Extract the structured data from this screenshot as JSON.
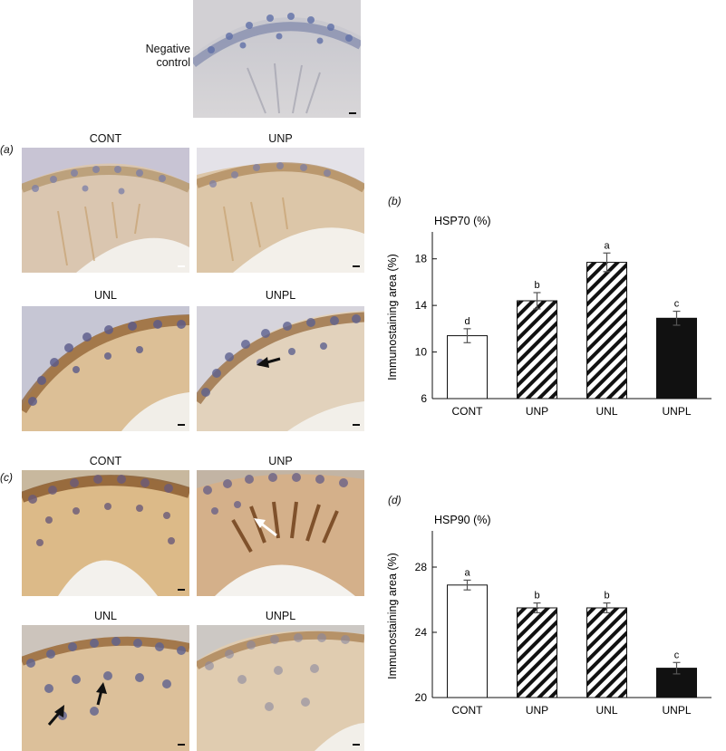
{
  "negative_control": {
    "label_line1": "Negative",
    "label_line2": "control"
  },
  "panel_a": {
    "tag_open": "(",
    "tag_letter": "a",
    "tag_close": ")",
    "images": [
      {
        "label": "CONT"
      },
      {
        "label": "UNP"
      },
      {
        "label": "UNL"
      },
      {
        "label": "UNPL"
      }
    ]
  },
  "panel_c": {
    "tag_open": "(",
    "tag_letter": "c",
    "tag_close": ")",
    "images": [
      {
        "label": "CONT"
      },
      {
        "label": "UNP"
      },
      {
        "label": "UNL"
      },
      {
        "label": "UNPL"
      }
    ]
  },
  "chart_data": [
    {
      "panel": "(b)",
      "type": "bar",
      "title": "HSP70 (%)",
      "ylabel": "Immunostaining area (%)",
      "xlabel": "",
      "categories": [
        "CONT",
        "UNP",
        "UNL",
        "UNPL"
      ],
      "values": [
        11.4,
        14.4,
        17.7,
        12.9
      ],
      "errors": [
        0.6,
        0.7,
        0.8,
        0.6
      ],
      "letters": [
        "d",
        "b",
        "a",
        "c"
      ],
      "fills": [
        "white",
        "hatched",
        "hatched",
        "black"
      ],
      "ylim": [
        6,
        20
      ],
      "yticks": [
        6,
        10,
        14,
        18
      ],
      "grid": false
    },
    {
      "panel": "(d)",
      "type": "bar",
      "title": "HSP90 (%)",
      "ylabel": "Immunostaining area (%)",
      "xlabel": "",
      "categories": [
        "CONT",
        "UNP",
        "UNL",
        "UNPL"
      ],
      "values": [
        26.9,
        25.5,
        25.5,
        21.8
      ],
      "errors": [
        0.3,
        0.3,
        0.3,
        0.35
      ],
      "letters": [
        "a",
        "b",
        "b",
        "c"
      ],
      "fills": [
        "white",
        "hatched",
        "hatched",
        "black"
      ],
      "ylim": [
        20,
        30
      ],
      "yticks": [
        20,
        24,
        28
      ],
      "grid": false
    }
  ],
  "colors": {
    "hematoxylin": "#5a6a9a",
    "dab_light": "#d8b88a",
    "dab_dark": "#8a5a2a",
    "lumen": "#f4f2ee"
  }
}
